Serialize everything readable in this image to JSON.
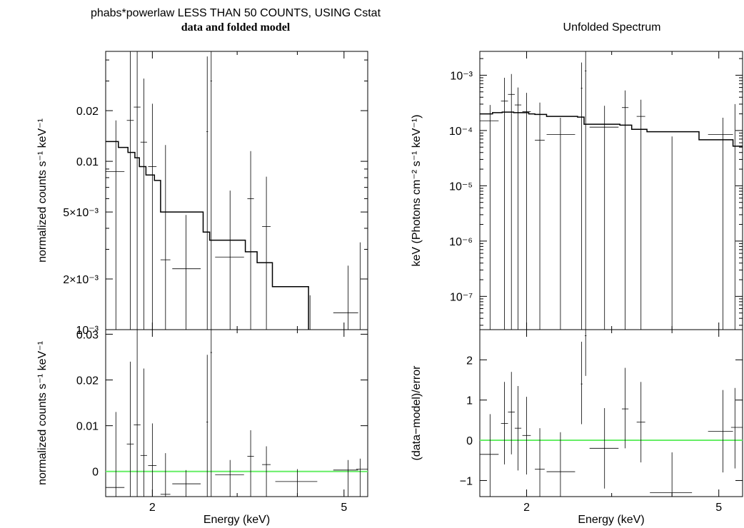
{
  "titles": {
    "left_main": "phabs*powerlaw LESS THAN 50 COUNTS, USING Cstat",
    "left_sub": "data and folded model",
    "right_main": "Unfolded Spectrum"
  },
  "colors": {
    "data": "#000000",
    "model": "#000000",
    "zero_line": "#66ee66",
    "frame": "#000000"
  },
  "chart_data": [
    {
      "id": "left_top",
      "type": "step",
      "title": "phabs*powerlaw LESS THAN 50 COUNTS, USING Cstat",
      "subtitle": "data and folded model",
      "ylabel": "normalized counts s⁻¹ keV⁻¹",
      "xscale": "log",
      "yscale": "log",
      "xlim": [
        1.6,
        5.6
      ],
      "ylim": [
        0.001,
        0.045
      ],
      "ticks": [
        {
          "v": 0.02,
          "label": "0.02"
        },
        {
          "v": 0.01,
          "label": "0.01"
        },
        {
          "v": 0.005,
          "label": "5×10⁻³"
        },
        {
          "v": 0.002,
          "label": "2×10⁻³"
        },
        {
          "v": 0.001,
          "label": "10⁻³"
        }
      ],
      "minor_ticks": [
        0.003,
        0.004,
        0.006,
        0.007,
        0.008,
        0.009,
        0.03,
        0.04
      ],
      "data": [
        {
          "x": 1.68,
          "xlo": 1.6,
          "xhi": 1.75,
          "y": 0.0087,
          "ylo": 0.001,
          "yhi": 0.0175
        },
        {
          "x": 1.8,
          "xlo": 1.77,
          "xhi": 1.83,
          "y": 0.0175,
          "ylo": 0.001,
          "yhi": 0.045
        },
        {
          "x": 1.86,
          "xlo": 1.83,
          "xhi": 1.89,
          "y": 0.021,
          "ylo": 0.001,
          "yhi": 0.045
        },
        {
          "x": 1.92,
          "xlo": 1.89,
          "xhi": 1.95,
          "y": 0.013,
          "ylo": 0.001,
          "yhi": 0.031
        },
        {
          "x": 2.0,
          "xlo": 1.96,
          "xhi": 2.04,
          "y": 0.0093,
          "ylo": 0.001,
          "yhi": 0.022
        },
        {
          "x": 2.13,
          "xlo": 2.08,
          "xhi": 2.18,
          "y": 0.0026,
          "ylo": 0.001,
          "yhi": 0.0125
        },
        {
          "x": 2.35,
          "xlo": 2.2,
          "xhi": 2.52,
          "y": 0.0023,
          "ylo": 0.001,
          "yhi": 0.0048
        },
        {
          "x": 2.6,
          "xlo": 2.59,
          "xhi": 2.61,
          "y": 0.015,
          "ylo": 0.001,
          "yhi": 0.042
        },
        {
          "x": 2.65,
          "xlo": 2.64,
          "xhi": 2.66,
          "y": 0.03,
          "ylo": 0.001,
          "yhi": 0.045
        },
        {
          "x": 2.9,
          "xlo": 2.7,
          "xhi": 3.1,
          "y": 0.0027,
          "ylo": 0.001,
          "yhi": 0.0067
        },
        {
          "x": 3.2,
          "xlo": 3.15,
          "xhi": 3.25,
          "y": 0.006,
          "ylo": 0.001,
          "yhi": 0.0115
        },
        {
          "x": 3.45,
          "xlo": 3.38,
          "xhi": 3.52,
          "y": 0.0041,
          "ylo": 0.001,
          "yhi": 0.0081
        },
        {
          "x": 4.25,
          "xlo": 4.25,
          "xhi": 4.25,
          "y": 0.001,
          "ylo": 0.001,
          "yhi": 0.0016
        },
        {
          "x": 5.1,
          "xlo": 4.75,
          "xhi": 5.35,
          "y": 0.00126,
          "ylo": 0.001,
          "yhi": 0.0024
        },
        {
          "x": 5.4,
          "xlo": 5.4,
          "xhi": 5.4,
          "y": 0.001,
          "ylo": 0.001,
          "yhi": 0.0033
        }
      ],
      "model": {
        "edges": [
          1.6,
          1.7,
          1.78,
          1.84,
          1.88,
          1.94,
          2.02,
          2.08,
          2.2,
          2.55,
          2.63,
          2.72,
          3.12,
          3.3,
          3.55,
          4.22
        ],
        "values": [
          0.0131,
          0.0121,
          0.0113,
          0.0105,
          0.0093,
          0.0083,
          0.0077,
          0.005,
          0.005,
          0.0038,
          0.0034,
          0.0034,
          0.0029,
          0.0025,
          0.0018
        ]
      }
    },
    {
      "id": "left_bottom",
      "type": "residual",
      "ylabel": "normalized counts s⁻¹ keV⁻¹",
      "xlabel": "Energy (keV)",
      "xscale": "log",
      "yscale": "linear",
      "xlim": [
        1.6,
        5.6
      ],
      "ylim": [
        -0.0055,
        0.031
      ],
      "ticks": [
        {
          "v": 0.03,
          "label": "0.03"
        },
        {
          "v": 0.02,
          "label": "0.02"
        },
        {
          "v": 0.01,
          "label": "0.01"
        },
        {
          "v": 0,
          "label": "0"
        }
      ],
      "xticks": [
        {
          "v": 2,
          "label": "2"
        },
        {
          "v": 5,
          "label": "5"
        }
      ],
      "zero_line": 0,
      "data": [
        {
          "x": 1.68,
          "xlo": 1.6,
          "xhi": 1.75,
          "y": -0.0035,
          "ylo": -0.0055,
          "yhi": 0.013
        },
        {
          "x": 1.8,
          "xlo": 1.77,
          "xhi": 1.83,
          "y": 0.006,
          "ylo": -0.0055,
          "yhi": 0.024
        },
        {
          "x": 1.86,
          "xlo": 1.83,
          "xhi": 1.89,
          "y": 0.0102,
          "ylo": -0.0055,
          "yhi": 0.031
        },
        {
          "x": 1.92,
          "xlo": 1.89,
          "xhi": 1.95,
          "y": 0.0035,
          "ylo": -0.0055,
          "yhi": 0.0225
        },
        {
          "x": 2.0,
          "xlo": 1.96,
          "xhi": 2.04,
          "y": 0.0013,
          "ylo": -0.0055,
          "yhi": 0.0105
        },
        {
          "x": 2.13,
          "xlo": 2.08,
          "xhi": 2.18,
          "y": -0.005,
          "ylo": -0.0055,
          "yhi": 0.004
        },
        {
          "x": 2.35,
          "xlo": 2.2,
          "xhi": 2.52,
          "y": -0.0027,
          "ylo": -0.0055,
          "yhi": 0.0003
        },
        {
          "x": 2.6,
          "xlo": 2.59,
          "xhi": 2.61,
          "y": 0.0108,
          "ylo": -0.0055,
          "yhi": 0.0255
        },
        {
          "x": 2.65,
          "xlo": 2.64,
          "xhi": 2.66,
          "y": 0.026,
          "ylo": -0.0055,
          "yhi": 0.031
        },
        {
          "x": 2.9,
          "xlo": 2.7,
          "xhi": 3.1,
          "y": -0.0007,
          "ylo": -0.0055,
          "yhi": 0.0025
        },
        {
          "x": 3.2,
          "xlo": 3.15,
          "xhi": 3.25,
          "y": 0.0033,
          "ylo": -0.0055,
          "yhi": 0.009
        },
        {
          "x": 3.45,
          "xlo": 3.38,
          "xhi": 3.52,
          "y": 0.0015,
          "ylo": -0.0055,
          "yhi": 0.0055
        },
        {
          "x": 4.0,
          "xlo": 3.6,
          "xhi": 4.4,
          "y": -0.0022,
          "ylo": -0.0055,
          "yhi": 0.0005
        },
        {
          "x": 5.1,
          "xlo": 4.75,
          "xhi": 5.35,
          "y": 0.0003,
          "ylo": -0.0055,
          "yhi": 0.0025
        },
        {
          "x": 5.4,
          "xlo": 5.3,
          "xhi": 5.6,
          "y": 0.0005,
          "ylo": -0.0055,
          "yhi": 0.0028
        }
      ]
    },
    {
      "id": "right_top",
      "type": "step",
      "title": "Unfolded Spectrum",
      "ylabel": "keV (Photons cm⁻² s⁻¹ keV⁻¹)",
      "xscale": "log",
      "yscale": "log",
      "xlim": [
        1.6,
        5.6
      ],
      "ylim": [
        2.5e-08,
        0.0027
      ],
      "ticks": [
        {
          "v": 0.001,
          "label": "10⁻³"
        },
        {
          "v": 0.0001,
          "label": "10⁻⁴"
        },
        {
          "v": 1e-05,
          "label": "10⁻⁵"
        },
        {
          "v": 1e-06,
          "label": "10⁻⁶"
        },
        {
          "v": 1e-07,
          "label": "10⁻⁷"
        }
      ],
      "data": [
        {
          "x": 1.68,
          "xlo": 1.6,
          "xhi": 1.75,
          "y": 0.00015,
          "ylo": 2.5e-08,
          "yhi": 0.00029
        },
        {
          "x": 1.8,
          "xlo": 1.77,
          "xhi": 1.83,
          "y": 0.00034,
          "ylo": 2.5e-08,
          "yhi": 0.0009
        },
        {
          "x": 1.86,
          "xlo": 1.83,
          "xhi": 1.89,
          "y": 0.00045,
          "ylo": 2.5e-08,
          "yhi": 0.00105
        },
        {
          "x": 1.92,
          "xlo": 1.89,
          "xhi": 1.95,
          "y": 0.00029,
          "ylo": 2.5e-08,
          "yhi": 0.0006
        },
        {
          "x": 2.0,
          "xlo": 1.96,
          "xhi": 2.04,
          "y": 0.00022,
          "ylo": 2.5e-08,
          "yhi": 0.00048
        },
        {
          "x": 2.13,
          "xlo": 2.08,
          "xhi": 2.18,
          "y": 6.7e-05,
          "ylo": 2.5e-08,
          "yhi": 0.00032
        },
        {
          "x": 2.35,
          "xlo": 2.2,
          "xhi": 2.52,
          "y": 8.5e-05,
          "ylo": 2.5e-08,
          "yhi": 0.00017
        },
        {
          "x": 2.6,
          "xlo": 2.59,
          "xhi": 2.61,
          "y": 0.00058,
          "ylo": 2.5e-08,
          "yhi": 0.0017
        },
        {
          "x": 2.65,
          "xlo": 2.64,
          "xhi": 2.66,
          "y": 0.0012,
          "ylo": 2.5e-08,
          "yhi": 0.0027
        },
        {
          "x": 2.9,
          "xlo": 2.7,
          "xhi": 3.1,
          "y": 0.000115,
          "ylo": 2.5e-08,
          "yhi": 0.00028
        },
        {
          "x": 3.2,
          "xlo": 3.15,
          "xhi": 3.25,
          "y": 0.00026,
          "ylo": 2.5e-08,
          "yhi": 0.00053
        },
        {
          "x": 3.45,
          "xlo": 3.38,
          "xhi": 3.52,
          "y": 0.00018,
          "ylo": 2.5e-08,
          "yhi": 0.00036
        },
        {
          "x": 4.0,
          "xlo": 4.0,
          "xhi": 4.0,
          "y": 2.5e-08,
          "ylo": 2.5e-08,
          "yhi": 7.8e-05
        },
        {
          "x": 5.1,
          "xlo": 4.75,
          "xhi": 5.35,
          "y": 8.5e-05,
          "ylo": 2.5e-08,
          "yhi": 0.00017
        },
        {
          "x": 5.4,
          "xlo": 5.4,
          "xhi": 5.4,
          "y": 2.5e-08,
          "ylo": 2.5e-08,
          "yhi": 0.0003
        }
      ],
      "model": {
        "edges": [
          1.6,
          1.7,
          1.78,
          1.84,
          1.88,
          1.94,
          2.02,
          2.08,
          2.2,
          2.55,
          2.63,
          2.72,
          3.12,
          3.3,
          3.55,
          4.55,
          5.35,
          5.6
        ],
        "values": [
          0.0002,
          0.00021,
          0.000215,
          0.000215,
          0.00021,
          0.00021,
          0.0002,
          0.000195,
          0.00018,
          0.000175,
          0.00013,
          0.00013,
          0.000125,
          0.000105,
          9.5e-05,
          6.8e-05,
          5.2e-05
        ]
      }
    },
    {
      "id": "right_bottom",
      "type": "residual",
      "ylabel": "(data−model)/error",
      "xlabel": "Energy (keV)",
      "xscale": "log",
      "yscale": "linear",
      "xlim": [
        1.6,
        5.6
      ],
      "ylim": [
        -1.4,
        2.75
      ],
      "ticks": [
        {
          "v": 2,
          "label": "2"
        },
        {
          "v": 1,
          "label": "1"
        },
        {
          "v": 0,
          "label": "0"
        },
        {
          "v": -1,
          "label": "−1"
        }
      ],
      "xticks": [
        {
          "v": 2,
          "label": "2"
        },
        {
          "v": 5,
          "label": "5"
        }
      ],
      "zero_line": 0,
      "data": [
        {
          "x": 1.68,
          "xlo": 1.6,
          "xhi": 1.75,
          "y": -0.35,
          "ylo": -1.4,
          "yhi": 0.65
        },
        {
          "x": 1.8,
          "xlo": 1.77,
          "xhi": 1.83,
          "y": 0.42,
          "ylo": -0.6,
          "yhi": 1.45
        },
        {
          "x": 1.86,
          "xlo": 1.83,
          "xhi": 1.89,
          "y": 0.7,
          "ylo": -0.35,
          "yhi": 1.7
        },
        {
          "x": 1.92,
          "xlo": 1.89,
          "xhi": 1.95,
          "y": 0.3,
          "ylo": -0.75,
          "yhi": 1.35
        },
        {
          "x": 2.0,
          "xlo": 1.96,
          "xhi": 2.04,
          "y": 0.12,
          "ylo": -0.85,
          "yhi": 1.08
        },
        {
          "x": 2.13,
          "xlo": 2.08,
          "xhi": 2.18,
          "y": -0.72,
          "ylo": -1.4,
          "yhi": 0.3
        },
        {
          "x": 2.35,
          "xlo": 2.2,
          "xhi": 2.52,
          "y": -0.78,
          "ylo": -1.4,
          "yhi": 0.2
        },
        {
          "x": 2.6,
          "xlo": 2.59,
          "xhi": 2.61,
          "y": 1.4,
          "ylo": 0.4,
          "yhi": 2.45
        },
        {
          "x": 2.65,
          "xlo": 2.64,
          "xhi": 2.66,
          "y": 2.6,
          "ylo": 1.6,
          "yhi": 2.75
        },
        {
          "x": 2.9,
          "xlo": 2.7,
          "xhi": 3.1,
          "y": -0.2,
          "ylo": -1.2,
          "yhi": 0.8
        },
        {
          "x": 3.2,
          "xlo": 3.15,
          "xhi": 3.25,
          "y": 0.78,
          "ylo": -0.2,
          "yhi": 1.8
        },
        {
          "x": 3.45,
          "xlo": 3.38,
          "xhi": 3.52,
          "y": 0.45,
          "ylo": -0.55,
          "yhi": 1.45
        },
        {
          "x": 4.0,
          "xlo": 3.6,
          "xhi": 4.4,
          "y": -1.3,
          "ylo": -1.4,
          "yhi": -0.3
        },
        {
          "x": 5.1,
          "xlo": 4.75,
          "xhi": 5.35,
          "y": 0.22,
          "ylo": -0.8,
          "yhi": 1.25
        },
        {
          "x": 5.4,
          "xlo": 5.3,
          "xhi": 5.6,
          "y": 0.32,
          "ylo": -0.7,
          "yhi": 1.3
        }
      ]
    }
  ]
}
